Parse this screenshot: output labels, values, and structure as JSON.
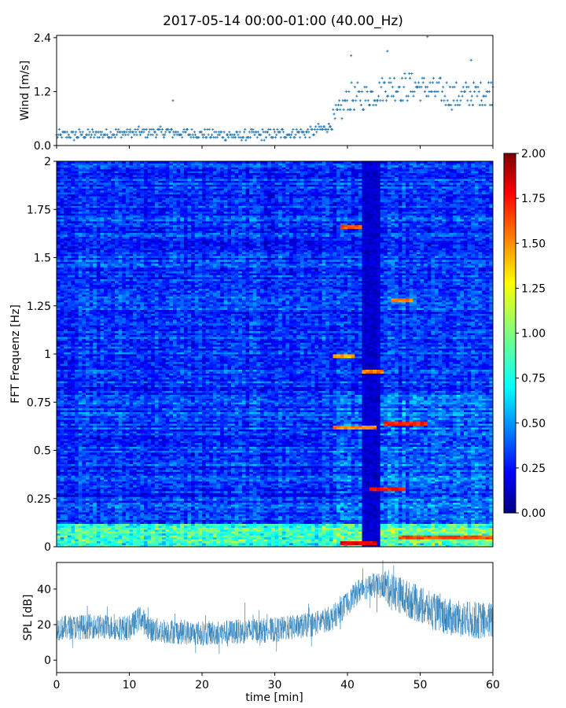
{
  "figure": {
    "title": "2017-05-14 00:00-01:00 (40.00_Hz)"
  },
  "chart_data": [
    {
      "type": "scatter",
      "panel": "wind",
      "ylabel": "Wind [m/s]",
      "xlim": [
        0,
        60
      ],
      "ylim": [
        0,
        2.45
      ],
      "yticks": [
        0.0,
        1.2,
        2.4
      ],
      "ytick_labels": [
        "0.0",
        "1.2",
        "2.4"
      ],
      "xticks": [
        0,
        10,
        20,
        30,
        40,
        50,
        60
      ],
      "marker": "+",
      "color": "#1f77b4",
      "trend": [
        {
          "x": 0,
          "y": 0.22
        },
        {
          "x": 5,
          "y": 0.25
        },
        {
          "x": 10,
          "y": 0.28
        },
        {
          "x": 15,
          "y": 0.3
        },
        {
          "x": 20,
          "y": 0.25
        },
        {
          "x": 25,
          "y": 0.22
        },
        {
          "x": 30,
          "y": 0.25
        },
        {
          "x": 35,
          "y": 0.3
        },
        {
          "x": 38,
          "y": 0.45
        },
        {
          "x": 40,
          "y": 1.05
        },
        {
          "x": 43,
          "y": 1.1
        },
        {
          "x": 45,
          "y": 1.3
        },
        {
          "x": 50,
          "y": 1.3
        },
        {
          "x": 55,
          "y": 1.1
        },
        {
          "x": 60,
          "y": 1.2
        }
      ],
      "notable_points": [
        {
          "x": 16,
          "y": 1.0
        },
        {
          "x": 40.5,
          "y": 2.0
        },
        {
          "x": 45.5,
          "y": 2.1
        },
        {
          "x": 51,
          "y": 2.42
        },
        {
          "x": 57,
          "y": 1.9
        }
      ]
    },
    {
      "type": "heatmap",
      "panel": "spectrogram",
      "ylabel": "FFT Frequenz [Hz]",
      "xlim": [
        0,
        60
      ],
      "ylim": [
        0,
        2
      ],
      "yticks": [
        0,
        0.25,
        0.5,
        0.75,
        1,
        1.25,
        1.5,
        1.75,
        2
      ],
      "ytick_labels": [
        "0",
        "0.25",
        "0.5",
        "0.75",
        "1",
        "1.25",
        "1.5",
        "1.75",
        "2"
      ],
      "colormap": "jet",
      "clim": [
        0,
        2
      ],
      "colorbar_ticks": [
        0.0,
        0.25,
        0.5,
        0.75,
        1.0,
        1.25,
        1.5,
        1.75,
        2.0
      ],
      "colorbar_tick_labels": [
        "0.00",
        "0.25",
        "0.50",
        "0.75",
        "1.00",
        "1.25",
        "1.50",
        "1.75",
        "2.00"
      ],
      "typical_value": 0.35,
      "low_band": {
        "x_range": [
          42,
          44.5
        ],
        "value": 0.08
      },
      "high_bands": [
        {
          "x": [
            39,
            42
          ],
          "y": 1.66,
          "value": 1.7
        },
        {
          "x": [
            46,
            49
          ],
          "y": 1.28,
          "value": 1.6
        },
        {
          "x": [
            38,
            41
          ],
          "y": 0.99,
          "value": 1.5
        },
        {
          "x": [
            42,
            45
          ],
          "y": 0.91,
          "value": 1.6
        },
        {
          "x": [
            38,
            44
          ],
          "y": 0.62,
          "value": 1.6
        },
        {
          "x": [
            45,
            51
          ],
          "y": 0.64,
          "value": 1.8
        },
        {
          "x": [
            43,
            48
          ],
          "y": 0.3,
          "value": 1.8
        },
        {
          "x": [
            39,
            44
          ],
          "y": 0.02,
          "value": 1.9
        },
        {
          "x": [
            47,
            60
          ],
          "y": 0.05,
          "value": 1.7
        }
      ]
    },
    {
      "type": "line",
      "panel": "spl",
      "ylabel": "SPL [dB]",
      "xlabel": "time [min]",
      "xlim": [
        0,
        60
      ],
      "ylim": [
        -7,
        55
      ],
      "yticks": [
        0,
        20,
        40
      ],
      "ytick_labels": [
        "0",
        "20",
        "40"
      ],
      "xticks": [
        0,
        10,
        20,
        30,
        40,
        50,
        60
      ],
      "xtick_labels": [
        "0",
        "10",
        "20",
        "30",
        "40",
        "50",
        "60"
      ],
      "color": "#1f77b4",
      "trend": [
        {
          "x": 0,
          "y": 18
        },
        {
          "x": 5,
          "y": 19
        },
        {
          "x": 10,
          "y": 18
        },
        {
          "x": 11.5,
          "y": 24
        },
        {
          "x": 13,
          "y": 17
        },
        {
          "x": 20,
          "y": 15
        },
        {
          "x": 25,
          "y": 16
        },
        {
          "x": 30,
          "y": 17
        },
        {
          "x": 35,
          "y": 20
        },
        {
          "x": 38,
          "y": 24
        },
        {
          "x": 40,
          "y": 32
        },
        {
          "x": 42,
          "y": 41
        },
        {
          "x": 45,
          "y": 42
        },
        {
          "x": 48,
          "y": 35
        },
        {
          "x": 52,
          "y": 27
        },
        {
          "x": 55,
          "y": 23
        },
        {
          "x": 60,
          "y": 22
        }
      ],
      "spread": 7
    }
  ]
}
